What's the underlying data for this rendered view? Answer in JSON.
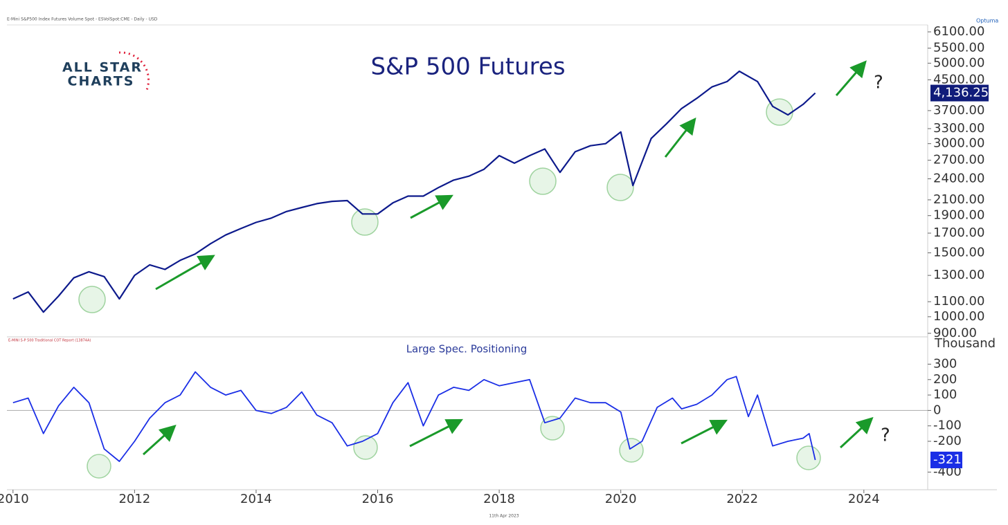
{
  "header": {
    "source": "E-Mini S&P500 Index Futures Volume Spot - ESVolSpot:CME - Daily - USD",
    "brand": "Optuma",
    "logo_top": "ALL STAR",
    "logo_bottom": "CHARTS"
  },
  "footer": {
    "date": "11th Apr 2023"
  },
  "chart_data": [
    {
      "type": "line",
      "title": "S&P 500 Futures",
      "log_scale": true,
      "color": "#0d1a8c",
      "xlim": [
        2009.9,
        2025.05
      ],
      "ylim": [
        880,
        6375
      ],
      "yticks": [
        {
          "value": 6100,
          "label": "6100.00"
        },
        {
          "value": 5500,
          "label": "5500.00"
        },
        {
          "value": 5000,
          "label": "5000.00"
        },
        {
          "value": 4500,
          "label": "4500.00"
        },
        {
          "value": 3700,
          "label": "3700.00"
        },
        {
          "value": 3300,
          "label": "3300.00"
        },
        {
          "value": 3000,
          "label": "3000.00"
        },
        {
          "value": 2700,
          "label": "2700.00"
        },
        {
          "value": 2400,
          "label": "2400.00"
        },
        {
          "value": 2100,
          "label": "2100.00"
        },
        {
          "value": 1900,
          "label": "1900.00"
        },
        {
          "value": 1700,
          "label": "1700.00"
        },
        {
          "value": 1500,
          "label": "1500.00"
        },
        {
          "value": 1300,
          "label": "1300.00"
        },
        {
          "value": 1100,
          "label": "1100.00"
        },
        {
          "value": 1000,
          "label": "1000.00"
        },
        {
          "value": 900,
          "label": "900.00"
        }
      ],
      "x": [
        2010.0,
        2010.25,
        2010.5,
        2010.75,
        2011.0,
        2011.25,
        2011.5,
        2011.75,
        2012.0,
        2012.25,
        2012.5,
        2012.75,
        2013.0,
        2013.25,
        2013.5,
        2013.75,
        2014.0,
        2014.25,
        2014.5,
        2014.75,
        2015.0,
        2015.25,
        2015.5,
        2015.75,
        2016.0,
        2016.25,
        2016.5,
        2016.75,
        2017.0,
        2017.25,
        2017.5,
        2017.75,
        2018.0,
        2018.25,
        2018.5,
        2018.75,
        2019.0,
        2019.25,
        2019.5,
        2019.75,
        2020.0,
        2020.2,
        2020.5,
        2020.75,
        2021.0,
        2021.25,
        2021.5,
        2021.75,
        2021.95,
        2022.25,
        2022.5,
        2022.75,
        2023.0,
        2023.2
      ],
      "values": [
        1120,
        1170,
        1030,
        1140,
        1280,
        1330,
        1290,
        1120,
        1300,
        1390,
        1350,
        1430,
        1490,
        1590,
        1680,
        1750,
        1820,
        1870,
        1950,
        2000,
        2050,
        2080,
        2090,
        1920,
        1920,
        2060,
        2150,
        2150,
        2270,
        2380,
        2440,
        2550,
        2780,
        2650,
        2780,
        2900,
        2500,
        2850,
        2960,
        3000,
        3230,
        2300,
        3100,
        3400,
        3750,
        4000,
        4300,
        4450,
        4750,
        4450,
        3800,
        3600,
        3850,
        4136.25
      ],
      "value_labels": [
        null,
        null,
        null,
        null,
        null,
        null,
        null,
        null,
        null,
        null,
        null,
        null,
        null,
        null,
        null,
        null,
        null,
        null,
        null,
        null,
        null,
        null,
        null,
        null,
        null,
        null,
        null,
        null,
        null,
        null,
        null,
        null,
        null,
        null,
        null,
        null,
        null,
        null,
        null,
        null,
        null,
        null,
        null,
        null,
        null,
        null,
        null,
        null,
        null,
        null,
        null,
        null,
        null,
        "4,136.25"
      ],
      "annotations": [
        "?"
      ]
    },
    {
      "type": "line",
      "title": "Large Spec. Positioning",
      "subtitle": "E-MINI S-P 500 Traditional COT Report (13874A)",
      "y_label": "Thousand",
      "color": "#1a2ee6",
      "zero_line": true,
      "xlim": [
        2009.9,
        2025.05
      ],
      "ylim": [
        -514,
        477
      ],
      "xticks": [
        {
          "value": 2010,
          "label": "2010"
        },
        2012,
        2014,
        2016,
        2018,
        2020,
        2022,
        2024
      ],
      "yticks": [
        300,
        200,
        100,
        0,
        -100,
        -200,
        -400
      ],
      "x": [
        2010.0,
        2010.25,
        2010.5,
        2010.75,
        2011.0,
        2011.25,
        2011.5,
        2011.75,
        2012.0,
        2012.25,
        2012.5,
        2012.75,
        2013.0,
        2013.25,
        2013.5,
        2013.75,
        2014.0,
        2014.25,
        2014.5,
        2014.75,
        2015.0,
        2015.25,
        2015.5,
        2015.75,
        2016.0,
        2016.25,
        2016.5,
        2016.75,
        2017.0,
        2017.25,
        2017.5,
        2017.75,
        2018.0,
        2018.25,
        2018.5,
        2018.75,
        2019.0,
        2019.25,
        2019.5,
        2019.75,
        2020.0,
        2020.15,
        2020.35,
        2020.6,
        2020.85,
        2021.0,
        2021.25,
        2021.5,
        2021.75,
        2021.9,
        2022.1,
        2022.25,
        2022.5,
        2022.75,
        2023.0,
        2023.1,
        2023.2
      ],
      "values": [
        50,
        80,
        -150,
        30,
        150,
        50,
        -250,
        -330,
        -200,
        -50,
        50,
        100,
        250,
        150,
        100,
        130,
        0,
        -20,
        20,
        120,
        -30,
        -80,
        -230,
        -200,
        -150,
        50,
        180,
        -100,
        100,
        150,
        130,
        200,
        160,
        180,
        200,
        -80,
        -50,
        80,
        50,
        50,
        -10,
        -250,
        -200,
        20,
        80,
        10,
        40,
        100,
        200,
        220,
        -40,
        100,
        -230,
        -200,
        -180,
        -150,
        -321
      ],
      "value_labels": [
        null,
        null,
        null,
        null,
        null,
        null,
        null,
        null,
        null,
        null,
        null,
        null,
        null,
        null,
        null,
        null,
        null,
        null,
        null,
        null,
        null,
        null,
        null,
        null,
        null,
        null,
        null,
        null,
        null,
        null,
        null,
        null,
        null,
        null,
        null,
        null,
        null,
        null,
        null,
        null,
        null,
        null,
        null,
        null,
        null,
        null,
        null,
        null,
        null,
        null,
        null,
        null,
        null,
        null,
        null,
        null,
        "-321"
      ],
      "annotations": [
        "?"
      ]
    }
  ]
}
